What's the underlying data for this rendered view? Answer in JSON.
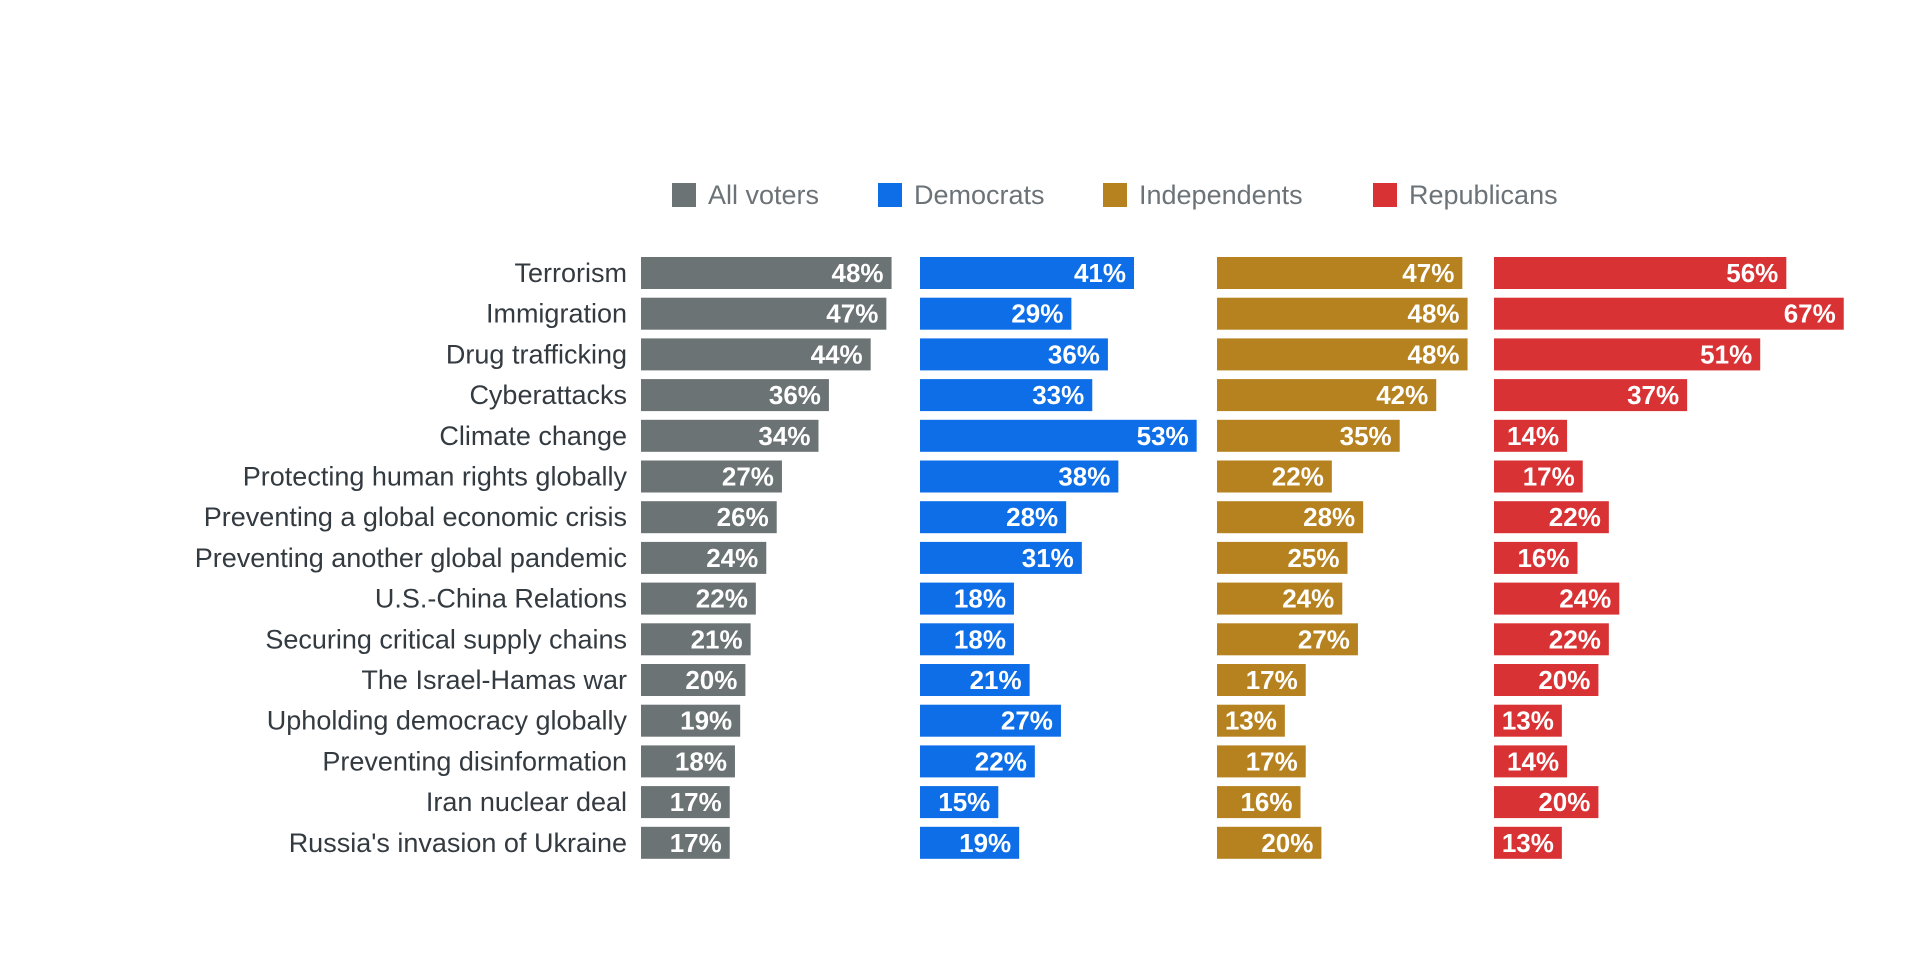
{
  "chart_data": {
    "type": "bar",
    "orientation": "horizontal",
    "layout": "small-multiples",
    "legend_position": "top",
    "grid": false,
    "title": "",
    "xlabel": "",
    "ylabel": "",
    "xlim": [
      0,
      100
    ],
    "value_suffix": "%",
    "categories": [
      "Terrorism",
      "Immigration",
      "Drug trafficking",
      "Cyberattacks",
      "Climate change",
      "Protecting human rights globally",
      "Preventing a global economic crisis",
      "Preventing another global pandemic",
      "U.S.-China Relations",
      "Securing critical supply chains",
      "The Israel-Hamas war",
      "Upholding democracy globally",
      "Preventing disinformation",
      "Iran nuclear deal",
      "Russia's invasion of Ukraine"
    ],
    "series": [
      {
        "name": "All voters",
        "color": "#6c7375",
        "values": [
          48,
          47,
          44,
          36,
          34,
          27,
          26,
          24,
          22,
          21,
          20,
          19,
          18,
          17,
          17
        ]
      },
      {
        "name": "Democrats",
        "color": "#0d6ee8",
        "values": [
          41,
          29,
          36,
          33,
          53,
          38,
          28,
          31,
          18,
          18,
          21,
          27,
          22,
          15,
          19
        ]
      },
      {
        "name": "Independents",
        "color": "#b6821f",
        "values": [
          47,
          48,
          48,
          42,
          35,
          22,
          28,
          25,
          24,
          27,
          17,
          13,
          17,
          16,
          20
        ]
      },
      {
        "name": "Republicans",
        "color": "#d93234",
        "values": [
          56,
          67,
          51,
          37,
          14,
          17,
          22,
          16,
          24,
          22,
          20,
          13,
          14,
          20,
          13
        ]
      }
    ]
  }
}
